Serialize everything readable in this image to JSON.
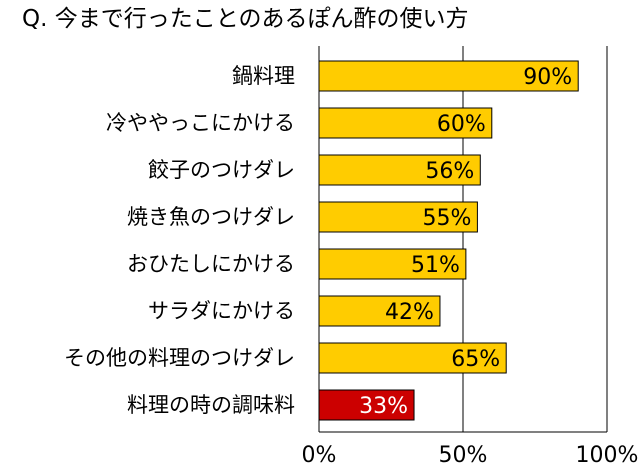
{
  "chart_data": {
    "type": "bar",
    "orientation": "horizontal",
    "title": "Q. 今まで行ったことのあるぽん酢の使い方",
    "categories": [
      "鍋料理",
      "冷ややっこにかける",
      "餃子のつけダレ",
      "焼き魚のつけダレ",
      "おひたしにかける",
      "サラダにかける",
      "その他の料理のつけダレ",
      "料理の時の調味料"
    ],
    "values": [
      90,
      60,
      56,
      55,
      51,
      42,
      65,
      33
    ],
    "value_labels": [
      "90%",
      "60%",
      "56%",
      "55%",
      "51%",
      "42%",
      "65%",
      "33%"
    ],
    "bar_colors": [
      "#ffcc00",
      "#ffcc00",
      "#ffcc00",
      "#ffcc00",
      "#ffcc00",
      "#ffcc00",
      "#ffcc00",
      "#cc0000"
    ],
    "value_label_colors": [
      "#000000",
      "#000000",
      "#000000",
      "#000000",
      "#000000",
      "#000000",
      "#000000",
      "#ffffff"
    ],
    "xlim": [
      0,
      100
    ],
    "xticks": [
      0,
      50,
      100
    ],
    "xtick_labels": [
      "0%",
      "50%",
      "100%"
    ],
    "grid": "vertical",
    "xlabel": "",
    "ylabel": ""
  }
}
